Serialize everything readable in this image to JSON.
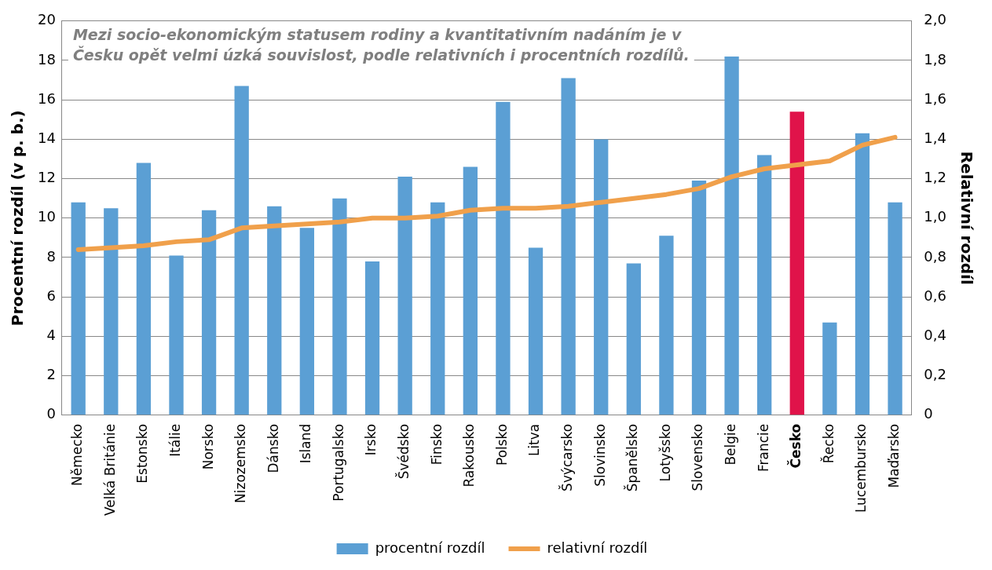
{
  "chart_data": {
    "type": "bar",
    "ylabel": "Procentní rozdíl (v p. b.)",
    "y2label": "Relativní rozdíl",
    "annotations": [
      "Mezi socio-ekonomickým statusem rodiny a kvantitativním nadáním je v Česku opět velmi úzká souvislost, podle relativních i procentních rozdílů."
    ],
    "categories": [
      "Německo",
      "Velká Británie",
      "Estonsko",
      "Itálie",
      "Norsko",
      "Nizozemsko",
      "Dánsko",
      "Island",
      "Portugalsko",
      "Irsko",
      "Švédsko",
      "Finsko",
      "Rakousko",
      "Polsko",
      "Litva",
      "Švýcarsko",
      "Slovinsko",
      "Španělsko",
      "Lotyšsko",
      "Slovensko",
      "Belgie",
      "Francie",
      "Česko",
      "Řecko",
      "Lucembursko",
      "Maďarsko"
    ],
    "series": [
      {
        "name": "procentní rozdíl",
        "color": "#5b9fd4",
        "colors": [
          "#5b9fd4",
          "#5b9fd4",
          "#5b9fd4",
          "#5b9fd4",
          "#5b9fd4",
          "#5b9fd4",
          "#5b9fd4",
          "#5b9fd4",
          "#5b9fd4",
          "#5b9fd4",
          "#5b9fd4",
          "#5b9fd4",
          "#5b9fd4",
          "#5b9fd4",
          "#5b9fd4",
          "#5b9fd4",
          "#5b9fd4",
          "#5b9fd4",
          "#5b9fd4",
          "#5b9fd4",
          "#5b9fd4",
          "#5b9fd4",
          "#e0134a",
          "#5b9fd4",
          "#5b9fd4",
          "#5b9fd4"
        ],
        "values": [
          10.8,
          10.5,
          12.8,
          8.1,
          10.4,
          16.7,
          10.6,
          9.5,
          11.0,
          7.8,
          12.1,
          10.8,
          12.6,
          15.9,
          8.5,
          17.1,
          14.0,
          7.7,
          9.1,
          11.9,
          18.2,
          13.2,
          15.4,
          4.7,
          14.3,
          10.8
        ]
      },
      {
        "name": "relativní rozdíl",
        "type": "line",
        "axis": "y2",
        "color": "#f0a04b",
        "values": [
          0.84,
          0.85,
          0.86,
          0.88,
          0.89,
          0.95,
          0.96,
          0.97,
          0.98,
          1.0,
          1.0,
          1.01,
          1.04,
          1.05,
          1.05,
          1.06,
          1.08,
          1.1,
          1.12,
          1.15,
          1.21,
          1.25,
          1.27,
          1.29,
          1.37,
          1.41
        ]
      }
    ],
    "ylim": [
      0,
      20
    ],
    "yticks": [
      0,
      2,
      4,
      6,
      8,
      10,
      12,
      14,
      16,
      18,
      20
    ],
    "y2lim": [
      0,
      2
    ],
    "y2ticks": [
      {
        "value": 0,
        "label": "0"
      },
      {
        "value": 0.2,
        "label": "0,2"
      },
      {
        "value": 0.4,
        "label": "0,4"
      },
      {
        "value": 0.6,
        "label": "0,6"
      },
      {
        "value": 0.8,
        "label": "0,8"
      },
      {
        "value": 1,
        "label": "1,0"
      },
      {
        "value": 1.2,
        "label": "1,2"
      },
      {
        "value": 1.4,
        "label": "1,4"
      },
      {
        "value": 1.6,
        "label": "1,6"
      },
      {
        "value": 1.8,
        "label": "1,8"
      },
      {
        "value": 2,
        "label": "2,0"
      }
    ],
    "grid": "y",
    "legend": "bottom",
    "marker": "none",
    "line_style": "solid"
  }
}
